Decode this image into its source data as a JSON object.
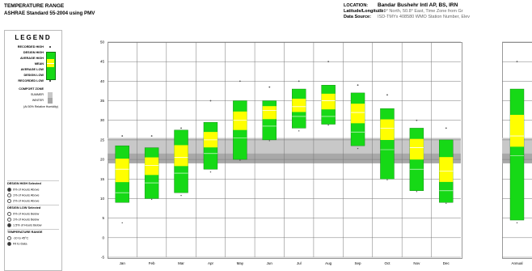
{
  "header": {
    "title": "TEMPERATURE RANGE",
    "subtitle": "ASHRAE Standard 55-2004 using PMV",
    "location_label": "LOCATION:",
    "location_value": "Bandar Bushehr Intl AP, BS, IRN",
    "latlon_label": "Latitude/Longitude:",
    "latlon_value": "28.9° North, 50.8° East, Time Zone from Gr",
    "source_label": "Data Source:",
    "source_value": "ISD-TMYx 408580 WMO Station Number, Elev"
  },
  "legend": {
    "title": "LEGEND",
    "items": [
      {
        "label": "RECORDED HIGH",
        "kind": "dot"
      },
      {
        "label": "DESIGN HIGH",
        "kind": "line"
      },
      {
        "label": "AVERAGE HIGH",
        "kind": "box"
      },
      {
        "label": "MEAN",
        "kind": "line"
      },
      {
        "label": "AVERAGE LOW",
        "kind": "box"
      },
      {
        "label": "DESIGN LOW",
        "kind": "line"
      },
      {
        "label": "RECORDED LOW",
        "kind": "dot"
      }
    ],
    "comfort_title": "COMFORT ZONE",
    "comfort_summer": "SUMMER",
    "comfort_winter": "WINTER",
    "comfort_note": "(At 50% Relative Humidity)"
  },
  "options": {
    "design_high_title": "DESIGN HIGH  Selected",
    "design_high": [
      {
        "label": "0% of Hours Above",
        "selected": true
      },
      {
        "label": "1% of Hours Above",
        "selected": false
      },
      {
        "label": "2% of Hours Above",
        "selected": false
      }
    ],
    "design_low_title": "DESIGN LOW  Selected",
    "design_low": [
      {
        "label": "0% of Hours Below",
        "selected": false
      },
      {
        "label": "1% of Hours Below",
        "selected": false
      },
      {
        "label": "1.5% of Hours Below",
        "selected": true
      }
    ],
    "temp_range_title": "TEMPERATURE RANGE",
    "temp_range": [
      {
        "label": "-10 to 45°C",
        "selected": false
      },
      {
        "label": "Fit to Data",
        "selected": true
      }
    ]
  },
  "colors": {
    "green": "#16d916",
    "yellow": "#ffff00",
    "green_border": "#0a7a0a",
    "comfort_summer": "#c8c8c8",
    "comfort_winter": "#a8a8a8",
    "grid": "#777777"
  },
  "chart_data": {
    "type": "box",
    "y_ticks": [
      50,
      45,
      40,
      35,
      30,
      25,
      20,
      15,
      10,
      5,
      0,
      -5
    ],
    "ylim": [
      -5,
      50
    ],
    "months": [
      {
        "label": "Jan",
        "rec_high": 26,
        "avg_high": 23.5,
        "mean": 17.5,
        "avg_low": 11.5,
        "design_low": 9,
        "rec_low": 4
      },
      {
        "label": "Feb",
        "rec_high": 26,
        "avg_high": 23,
        "mean": 18.5,
        "avg_low": 14,
        "design_low": 10,
        "rec_low": 10
      },
      {
        "label": "Mar",
        "rec_high": 28,
        "avg_high": 27.5,
        "mean": 20.5,
        "avg_low": 16.5,
        "design_low": 11.5,
        "rec_low": 11
      },
      {
        "label": "Apr",
        "rec_high": 35,
        "avg_high": 29.5,
        "mean": 25,
        "avg_low": 21.5,
        "design_low": 17.5,
        "rec_low": 17
      },
      {
        "label": "May",
        "rec_high": 40,
        "avg_high": 35,
        "mean": 30,
        "avg_low": 25.5,
        "design_low": 20,
        "rec_low": 20
      },
      {
        "label": "Jun",
        "rec_high": 38.5,
        "avg_high": 35,
        "mean": 32.5,
        "avg_low": 28.5,
        "design_low": 25,
        "rec_low": 25
      },
      {
        "label": "Jul",
        "rec_high": 40,
        "avg_high": 38,
        "mean": 33.5,
        "avg_low": 31,
        "design_low": 28,
        "rec_low": 27.5
      },
      {
        "label": "Aug",
        "rec_high": 45,
        "avg_high": 39,
        "mean": 35,
        "avg_low": 31,
        "design_low": 29,
        "rec_low": 29
      },
      {
        "label": "Sep",
        "rec_high": 39,
        "avg_high": 37,
        "mean": 32,
        "avg_low": 27,
        "design_low": 23.5,
        "rec_low": 23
      },
      {
        "label": "Oct",
        "rec_high": 36.5,
        "avg_high": 33,
        "mean": 28,
        "avg_low": 22.5,
        "design_low": 15,
        "rec_low": 15
      },
      {
        "label": "Nov",
        "rec_high": 30,
        "avg_high": 28,
        "mean": 23,
        "avg_low": 17.5,
        "design_low": 12,
        "rec_low": 12
      },
      {
        "label": "Dec",
        "rec_high": 28,
        "avg_high": 25,
        "mean": 17,
        "avg_low": 12,
        "design_low": 9,
        "rec_low": 9
      }
    ],
    "annual": {
      "label": "Annual",
      "rec_high": 45,
      "avg_high": 38,
      "mean": 26,
      "avg_low": 21,
      "design_low": 4.5,
      "rec_low": 4
    },
    "comfort_summer": [
      21,
      25.5
    ],
    "comfort_winter": [
      19,
      21.5
    ]
  }
}
